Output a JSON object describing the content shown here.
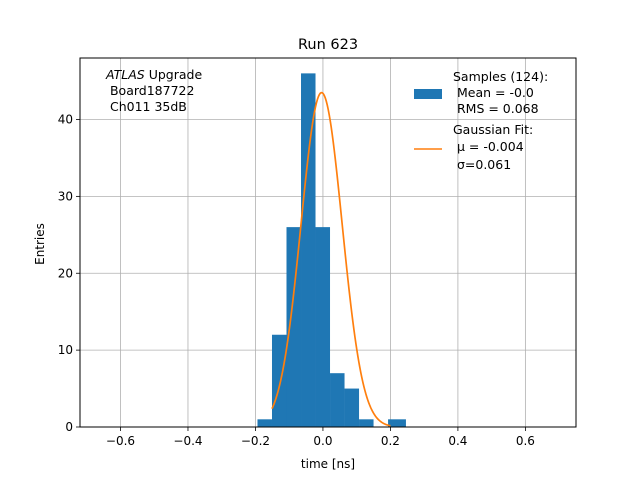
{
  "chart_data": {
    "type": "bar",
    "title": "Run 623",
    "xlabel": "time [ns]",
    "ylabel": "Entries",
    "xlim": [
      -0.72,
      0.75
    ],
    "ylim": [
      0,
      48
    ],
    "grid": true,
    "xticks": [
      -0.6,
      -0.4,
      -0.2,
      0.0,
      0.2,
      0.4,
      0.6
    ],
    "xtick_labels": [
      "−0.6",
      "−0.4",
      "−0.2",
      "0.0",
      "0.2",
      "0.4",
      "0.6"
    ],
    "yticks": [
      0,
      10,
      20,
      30,
      40
    ],
    "ytick_labels": [
      "0",
      "10",
      "20",
      "30",
      "40"
    ],
    "annotation": {
      "italic": "ATLAS",
      "line1_rest": " Upgrade",
      "line2": " Board187722",
      "line3": " Ch011 35dB"
    },
    "legend": {
      "placement": "top-right",
      "samples_lines": [
        "Samples (124):",
        " Mean = -0.0",
        " RMS = 0.068"
      ],
      "fit_lines": [
        "Gaussian Fit:",
        " μ = -0.004",
        " σ=0.061"
      ]
    },
    "histogram": {
      "name": "Samples (124):",
      "color": "#1f77b4",
      "bin_edges": [
        -0.194,
        -0.151,
        -0.108,
        -0.065,
        -0.022,
        0.021,
        0.064,
        0.107,
        0.15,
        0.193,
        0.236
      ],
      "counts": [
        1,
        12,
        26,
        46,
        26,
        7,
        5,
        1,
        0,
        0
      ],
      "extra_bins": [
        {
          "x0": -0.151,
          "x1": -0.108,
          "count": 0
        },
        {
          "x0": 0.193,
          "x1": 0.246,
          "count": 1
        }
      ]
    },
    "fit": {
      "name": "Gaussian Fit:",
      "color": "#ff7f0e",
      "mu": -0.004,
      "sigma": 0.061,
      "amplitude": 43.5,
      "x_range": [
        -0.151,
        0.2
      ]
    }
  }
}
